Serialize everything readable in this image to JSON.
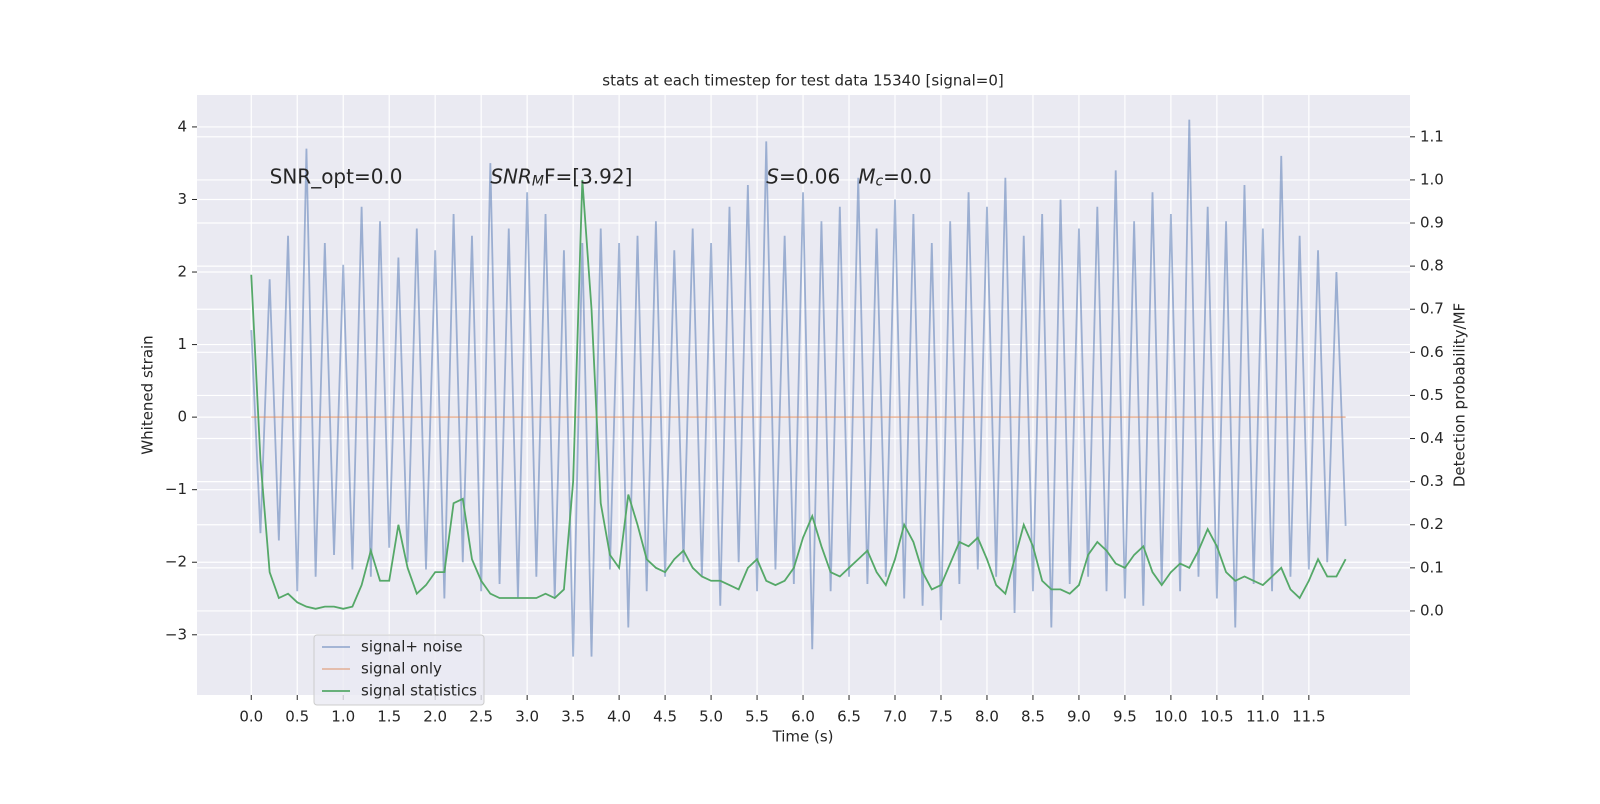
{
  "chart_data": {
    "type": "line",
    "title": "stats at each timestep for test data 15340 [signal=0]",
    "xlabel": "Time (s)",
    "ylabel": "Whitened strain",
    "y2label": "Detection probability/MF",
    "x": [
      0.0,
      0.1,
      0.2,
      0.3,
      0.4,
      0.5,
      0.6,
      0.7,
      0.8,
      0.9,
      1.0,
      1.1,
      1.2,
      1.3,
      1.4,
      1.5,
      1.6,
      1.7,
      1.8,
      1.9,
      2.0,
      2.1,
      2.2,
      2.3,
      2.4,
      2.5,
      2.6,
      2.7,
      2.8,
      2.9,
      3.0,
      3.1,
      3.2,
      3.3,
      3.4,
      3.5,
      3.6,
      3.7,
      3.8,
      3.9,
      4.0,
      4.1,
      4.2,
      4.3,
      4.4,
      4.5,
      4.6,
      4.7,
      4.8,
      4.9,
      5.0,
      5.1,
      5.2,
      5.3,
      5.4,
      5.5,
      5.6,
      5.7,
      5.8,
      5.9,
      6.0,
      6.1,
      6.2,
      6.3,
      6.4,
      6.5,
      6.6,
      6.7,
      6.8,
      6.9,
      7.0,
      7.1,
      7.2,
      7.3,
      7.4,
      7.5,
      7.6,
      7.7,
      7.8,
      7.9,
      8.0,
      8.1,
      8.2,
      8.3,
      8.4,
      8.5,
      8.6,
      8.7,
      8.8,
      8.9,
      9.0,
      9.1,
      9.2,
      9.3,
      9.4,
      9.5,
      9.6,
      9.7,
      9.8,
      9.9,
      10.0,
      10.1,
      10.2,
      10.3,
      10.4,
      10.5,
      10.6,
      10.7,
      10.8,
      10.9,
      11.0,
      11.1,
      11.2,
      11.3,
      11.4,
      11.5,
      11.6,
      11.7,
      11.8,
      11.9
    ],
    "series": [
      {
        "name": "signal+ noise",
        "color": "#4c72b0",
        "opacity": 0.5,
        "values": [
          1.2,
          -1.6,
          1.9,
          -1.7,
          2.5,
          -2.4,
          3.7,
          -2.2,
          2.4,
          -1.9,
          2.1,
          -2.1,
          2.9,
          -2.2,
          2.7,
          -1.8,
          2.2,
          -2.0,
          2.6,
          -2.1,
          2.3,
          -2.5,
          2.8,
          -2.0,
          2.5,
          -2.4,
          3.5,
          -2.3,
          2.6,
          -2.5,
          3.1,
          -2.2,
          2.8,
          -2.5,
          2.3,
          -3.3,
          2.4,
          -3.3,
          2.6,
          -2.1,
          2.4,
          -2.9,
          2.5,
          -2.4,
          2.7,
          -2.2,
          2.3,
          -2.0,
          2.6,
          -2.2,
          2.4,
          -2.6,
          2.9,
          -2.0,
          3.2,
          -2.4,
          3.8,
          -2.1,
          2.5,
          -2.3,
          3.1,
          -3.2,
          2.7,
          -2.4,
          2.9,
          -2.2,
          3.3,
          -2.3,
          2.6,
          -2.2,
          3.0,
          -2.5,
          2.8,
          -2.6,
          2.4,
          -2.8,
          2.7,
          -2.3,
          3.1,
          -2.1,
          2.9,
          -2.2,
          3.3,
          -2.7,
          2.5,
          -2.4,
          2.8,
          -2.9,
          3.0,
          -2.3,
          2.6,
          -2.2,
          2.9,
          -2.4,
          3.4,
          -2.5,
          2.7,
          -2.6,
          3.1,
          -2.3,
          2.8,
          -2.4,
          4.1,
          -2.2,
          2.9,
          -2.5,
          2.7,
          -2.9,
          3.2,
          -2.3,
          2.6,
          -2.4,
          3.6,
          -2.2,
          2.5,
          -2.1,
          2.3,
          -2.0,
          2.0,
          -1.5
        ]
      },
      {
        "name": "signal only",
        "color": "#dd8452",
        "opacity": 0.5,
        "values": [
          0,
          0,
          0,
          0,
          0,
          0,
          0,
          0,
          0,
          0,
          0,
          0,
          0,
          0,
          0,
          0,
          0,
          0,
          0,
          0,
          0,
          0,
          0,
          0,
          0,
          0,
          0,
          0,
          0,
          0,
          0,
          0,
          0,
          0,
          0,
          0,
          0,
          0,
          0,
          0,
          0,
          0,
          0,
          0,
          0,
          0,
          0,
          0,
          0,
          0,
          0,
          0,
          0,
          0,
          0,
          0,
          0,
          0,
          0,
          0,
          0,
          0,
          0,
          0,
          0,
          0,
          0,
          0,
          0,
          0,
          0,
          0,
          0,
          0,
          0,
          0,
          0,
          0,
          0,
          0,
          0,
          0,
          0,
          0,
          0,
          0,
          0,
          0,
          0,
          0,
          0,
          0,
          0,
          0,
          0,
          0,
          0,
          0,
          0,
          0,
          0,
          0,
          0,
          0,
          0,
          0,
          0,
          0,
          0,
          0,
          0,
          0,
          0,
          0,
          0,
          0,
          0,
          0,
          0,
          0
        ]
      },
      {
        "name": "signal statistics",
        "color": "#55a868",
        "opacity": 1,
        "axis": "y2",
        "values": [
          0.78,
          0.35,
          0.09,
          0.03,
          0.04,
          0.02,
          0.01,
          0.005,
          0.01,
          0.01,
          0.005,
          0.01,
          0.06,
          0.14,
          0.07,
          0.07,
          0.2,
          0.1,
          0.04,
          0.06,
          0.09,
          0.09,
          0.25,
          0.26,
          0.12,
          0.07,
          0.04,
          0.03,
          0.03,
          0.03,
          0.03,
          0.03,
          0.04,
          0.03,
          0.05,
          0.3,
          1.0,
          0.7,
          0.25,
          0.13,
          0.1,
          0.27,
          0.2,
          0.12,
          0.1,
          0.09,
          0.12,
          0.14,
          0.1,
          0.08,
          0.07,
          0.07,
          0.06,
          0.05,
          0.1,
          0.12,
          0.07,
          0.06,
          0.07,
          0.1,
          0.17,
          0.22,
          0.15,
          0.09,
          0.08,
          0.1,
          0.12,
          0.14,
          0.09,
          0.06,
          0.12,
          0.2,
          0.16,
          0.09,
          0.05,
          0.06,
          0.11,
          0.16,
          0.15,
          0.17,
          0.12,
          0.06,
          0.04,
          0.12,
          0.2,
          0.15,
          0.07,
          0.05,
          0.05,
          0.04,
          0.06,
          0.13,
          0.16,
          0.14,
          0.11,
          0.1,
          0.13,
          0.15,
          0.09,
          0.06,
          0.09,
          0.11,
          0.1,
          0.14,
          0.19,
          0.15,
          0.09,
          0.07,
          0.08,
          0.07,
          0.06,
          0.08,
          0.1,
          0.05,
          0.03,
          0.07,
          0.12,
          0.08,
          0.08,
          0.12
        ]
      }
    ],
    "xlim": [
      -0.59,
      12.6
    ],
    "xticks": [
      {
        "value": 0,
        "label": "0.0"
      },
      0.5,
      {
        "value": 1,
        "label": "1.0"
      },
      1.5,
      {
        "value": 2,
        "label": "2.0"
      },
      2.5,
      {
        "value": 3,
        "label": "3.0"
      },
      3.5,
      {
        "value": 4,
        "label": "4.0"
      },
      4.5,
      {
        "value": 5,
        "label": "5.0"
      },
      5.5,
      {
        "value": 6,
        "label": "6.0"
      },
      6.5,
      {
        "value": 7,
        "label": "7.0"
      },
      7.5,
      {
        "value": 8,
        "label": "8.0"
      },
      8.5,
      {
        "value": 9,
        "label": "9.0"
      },
      9.5,
      {
        "value": 10,
        "label": "10.0"
      },
      10.5,
      {
        "value": 11,
        "label": "11.0"
      },
      11.5
    ],
    "ylim": [
      -3.83,
      4.44
    ],
    "yticks": [
      {
        "value": -3,
        "label": "−3"
      },
      {
        "value": -2,
        "label": "−2"
      },
      {
        "value": -1,
        "label": "−1"
      },
      0,
      1,
      2,
      3,
      4
    ],
    "y2lim": [
      -0.195,
      1.197
    ],
    "y2ticks": [
      {
        "value": 0,
        "label": "0.0"
      },
      0.1,
      0.2,
      0.3,
      0.4,
      0.5,
      0.6,
      0.7,
      0.8,
      0.9,
      {
        "value": 1,
        "label": "1.0"
      },
      1.1
    ],
    "grid": true,
    "legend_loc": "lower left",
    "annotations": [
      {
        "parts": [
          "SNR_opt=0.0"
        ],
        "x": 0.2,
        "y": 3.3
      },
      {
        "parts": [
          "SNR",
          "M",
          "F=[3.92]"
        ],
        "x": 2.6,
        "y": 3.3
      },
      {
        "parts": [
          "S",
          "=0.06"
        ],
        "x": 5.6,
        "y": 3.3
      },
      {
        "parts": [
          "M",
          "c",
          "=0.0"
        ],
        "x": 6.6,
        "y": 3.3
      }
    ]
  }
}
